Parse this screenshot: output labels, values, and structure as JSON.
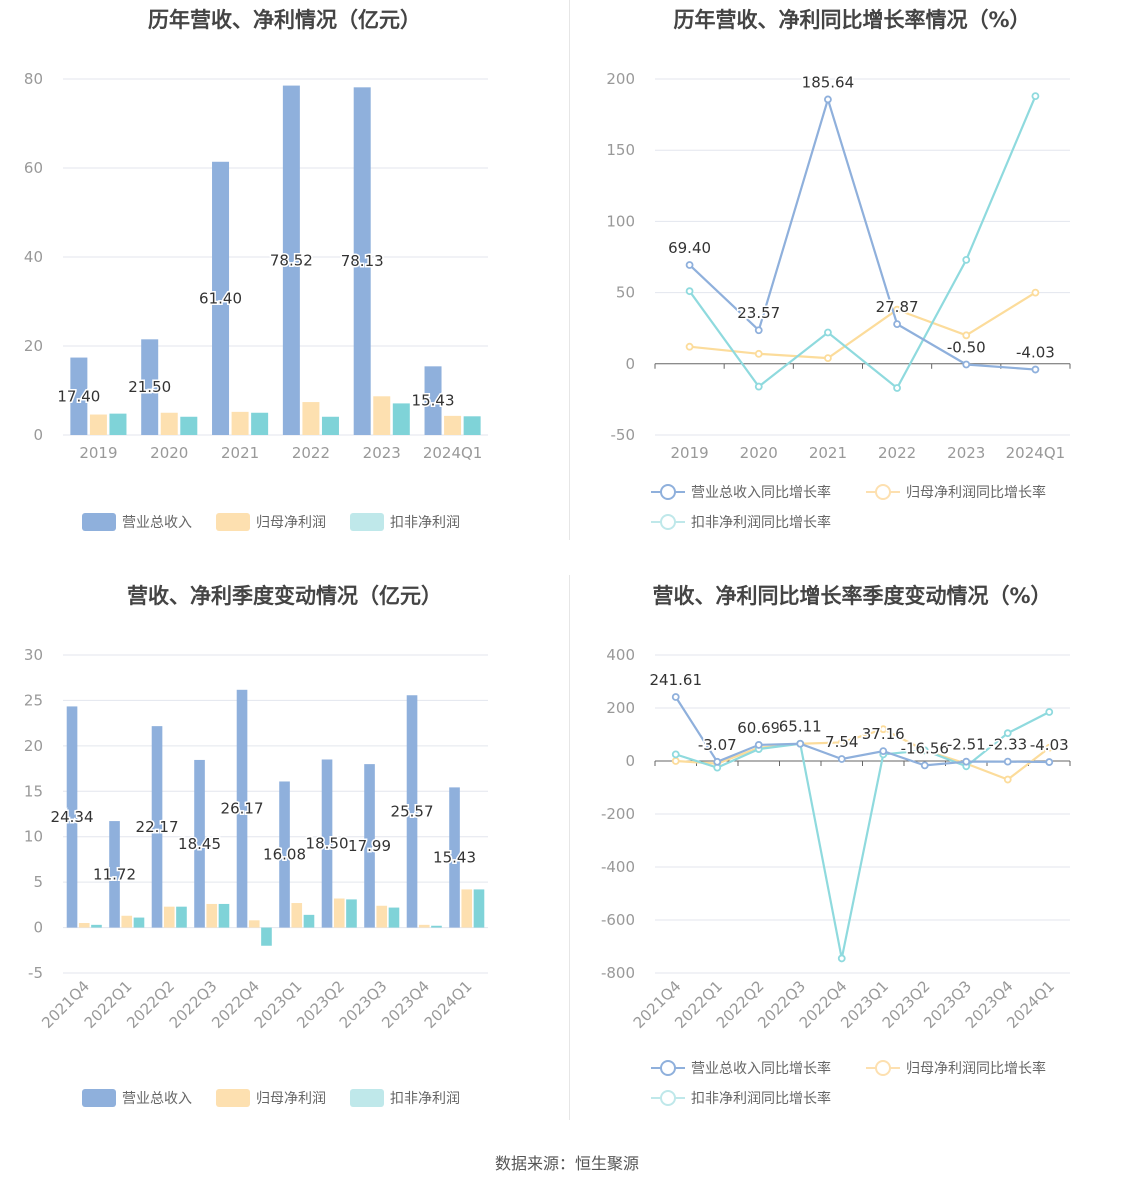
{
  "source": "数据来源：恒生聚源",
  "colors": {
    "revenue": "#8fb0dc",
    "parent_profit": "#fde0b0",
    "deducted_profit": "#7fd3d8",
    "grid": "#e3e6ee",
    "axis_text": "#999999",
    "label": "#444444"
  },
  "panels": [
    {
      "title": "历年营收、净利情况（亿元）",
      "legend": [
        "营业总收入",
        "归母净利润",
        "扣非净利润"
      ],
      "chart_data": {
        "type": "bar",
        "categories": [
          "2019",
          "2020",
          "2021",
          "2022",
          "2023",
          "2024Q1"
        ],
        "ylim": [
          0,
          80
        ],
        "yticks": [
          0,
          20,
          40,
          60,
          80
        ],
        "series": [
          {
            "name": "营业总收入",
            "values": [
              17.4,
              21.5,
              61.4,
              78.52,
              78.13,
              15.43
            ],
            "labels": [
              "17.40",
              "21.50",
              "61.40",
              "78.52",
              "78.13",
              "15.43"
            ]
          },
          {
            "name": "归母净利润",
            "values": [
              4.6,
              5.0,
              5.2,
              7.4,
              8.7,
              4.3
            ]
          },
          {
            "name": "扣非净利润",
            "values": [
              4.8,
              4.1,
              5.0,
              4.1,
              7.1,
              4.2
            ]
          }
        ]
      }
    },
    {
      "title": "历年营收、净利同比增长率情况（%）",
      "legend": [
        "营业总收入同比增长率",
        "归母净利润同比增长率",
        "扣非净利润同比增长率"
      ],
      "chart_data": {
        "type": "line",
        "categories": [
          "2019",
          "2020",
          "2021",
          "2022",
          "2023",
          "2024Q1"
        ],
        "ylim": [
          -50,
          200
        ],
        "yticks": [
          -50,
          0,
          50,
          100,
          150,
          200
        ],
        "series": [
          {
            "name": "营业总收入同比增长率",
            "values": [
              69.4,
              23.57,
              185.64,
              27.87,
              -0.5,
              -4.03
            ],
            "labels": [
              "69.40",
              "23.57",
              "185.64",
              "27.87",
              "-0.50",
              "-4.03"
            ]
          },
          {
            "name": "归母净利润同比增长率",
            "values": [
              12,
              7,
              4,
              38,
              20,
              50
            ]
          },
          {
            "name": "扣非净利润同比增长率",
            "values": [
              51,
              -16,
              22,
              -17,
              73,
              188
            ]
          }
        ]
      }
    },
    {
      "title": "营收、净利季度变动情况（亿元）",
      "legend": [
        "营业总收入",
        "归母净利润",
        "扣非净利润"
      ],
      "chart_data": {
        "type": "bar",
        "categories": [
          "2021Q4",
          "2022Q1",
          "2022Q2",
          "2022Q3",
          "2022Q4",
          "2023Q1",
          "2023Q2",
          "2023Q3",
          "2023Q4",
          "2024Q1"
        ],
        "ylim": [
          -5,
          30
        ],
        "yticks": [
          -5,
          0,
          5,
          10,
          15,
          20,
          25,
          30
        ],
        "series": [
          {
            "name": "营业总收入",
            "values": [
              24.34,
              11.72,
              22.17,
              18.45,
              26.17,
              16.08,
              18.5,
              17.99,
              25.57,
              15.43
            ],
            "labels": [
              "24.34",
              "11.72",
              "22.17",
              "18.45",
              "26.17",
              "16.08",
              "18.50",
              "17.99",
              "25.57",
              "15.43"
            ]
          },
          {
            "name": "归母净利润",
            "values": [
              0.5,
              1.3,
              2.3,
              2.6,
              0.8,
              2.7,
              3.2,
              2.4,
              0.3,
              4.2
            ]
          },
          {
            "name": "扣非净利润",
            "values": [
              0.3,
              1.1,
              2.3,
              2.6,
              -2.0,
              1.4,
              3.1,
              2.2,
              0.2,
              4.2
            ]
          }
        ]
      }
    },
    {
      "title": "营收、净利同比增长率季度变动情况（%）",
      "legend": [
        "营业总收入同比增长率",
        "归母净利润同比增长率",
        "扣非净利润同比增长率"
      ],
      "chart_data": {
        "type": "line",
        "categories": [
          "2021Q4",
          "2022Q1",
          "2022Q2",
          "2022Q3",
          "2022Q4",
          "2023Q1",
          "2023Q2",
          "2023Q3",
          "2023Q4",
          "2024Q1"
        ],
        "ylim": [
          -800,
          400
        ],
        "yticks": [
          -800,
          -600,
          -400,
          -200,
          0,
          200,
          400
        ],
        "series": [
          {
            "name": "营业总收入同比增长率",
            "values": [
              241.61,
              -3.07,
              60.69,
              65.11,
              7.54,
              37.16,
              -16.56,
              -2.51,
              -2.33,
              -4.03
            ],
            "labels": [
              "241.61",
              "-3.07",
              "60.69",
              "65.11",
              "7.54",
              "37.16",
              "-16.56",
              "-2.51",
              "-2.33",
              "-4.03"
            ]
          },
          {
            "name": "归母净利润同比增长率",
            "values": [
              0,
              -10,
              50,
              65,
              70,
              120,
              40,
              -10,
              -70,
              50
            ]
          },
          {
            "name": "扣非净利润同比增长率",
            "values": [
              25,
              -25,
              45,
              65,
              -745,
              25,
              40,
              -20,
              105,
              185
            ]
          }
        ]
      }
    }
  ]
}
